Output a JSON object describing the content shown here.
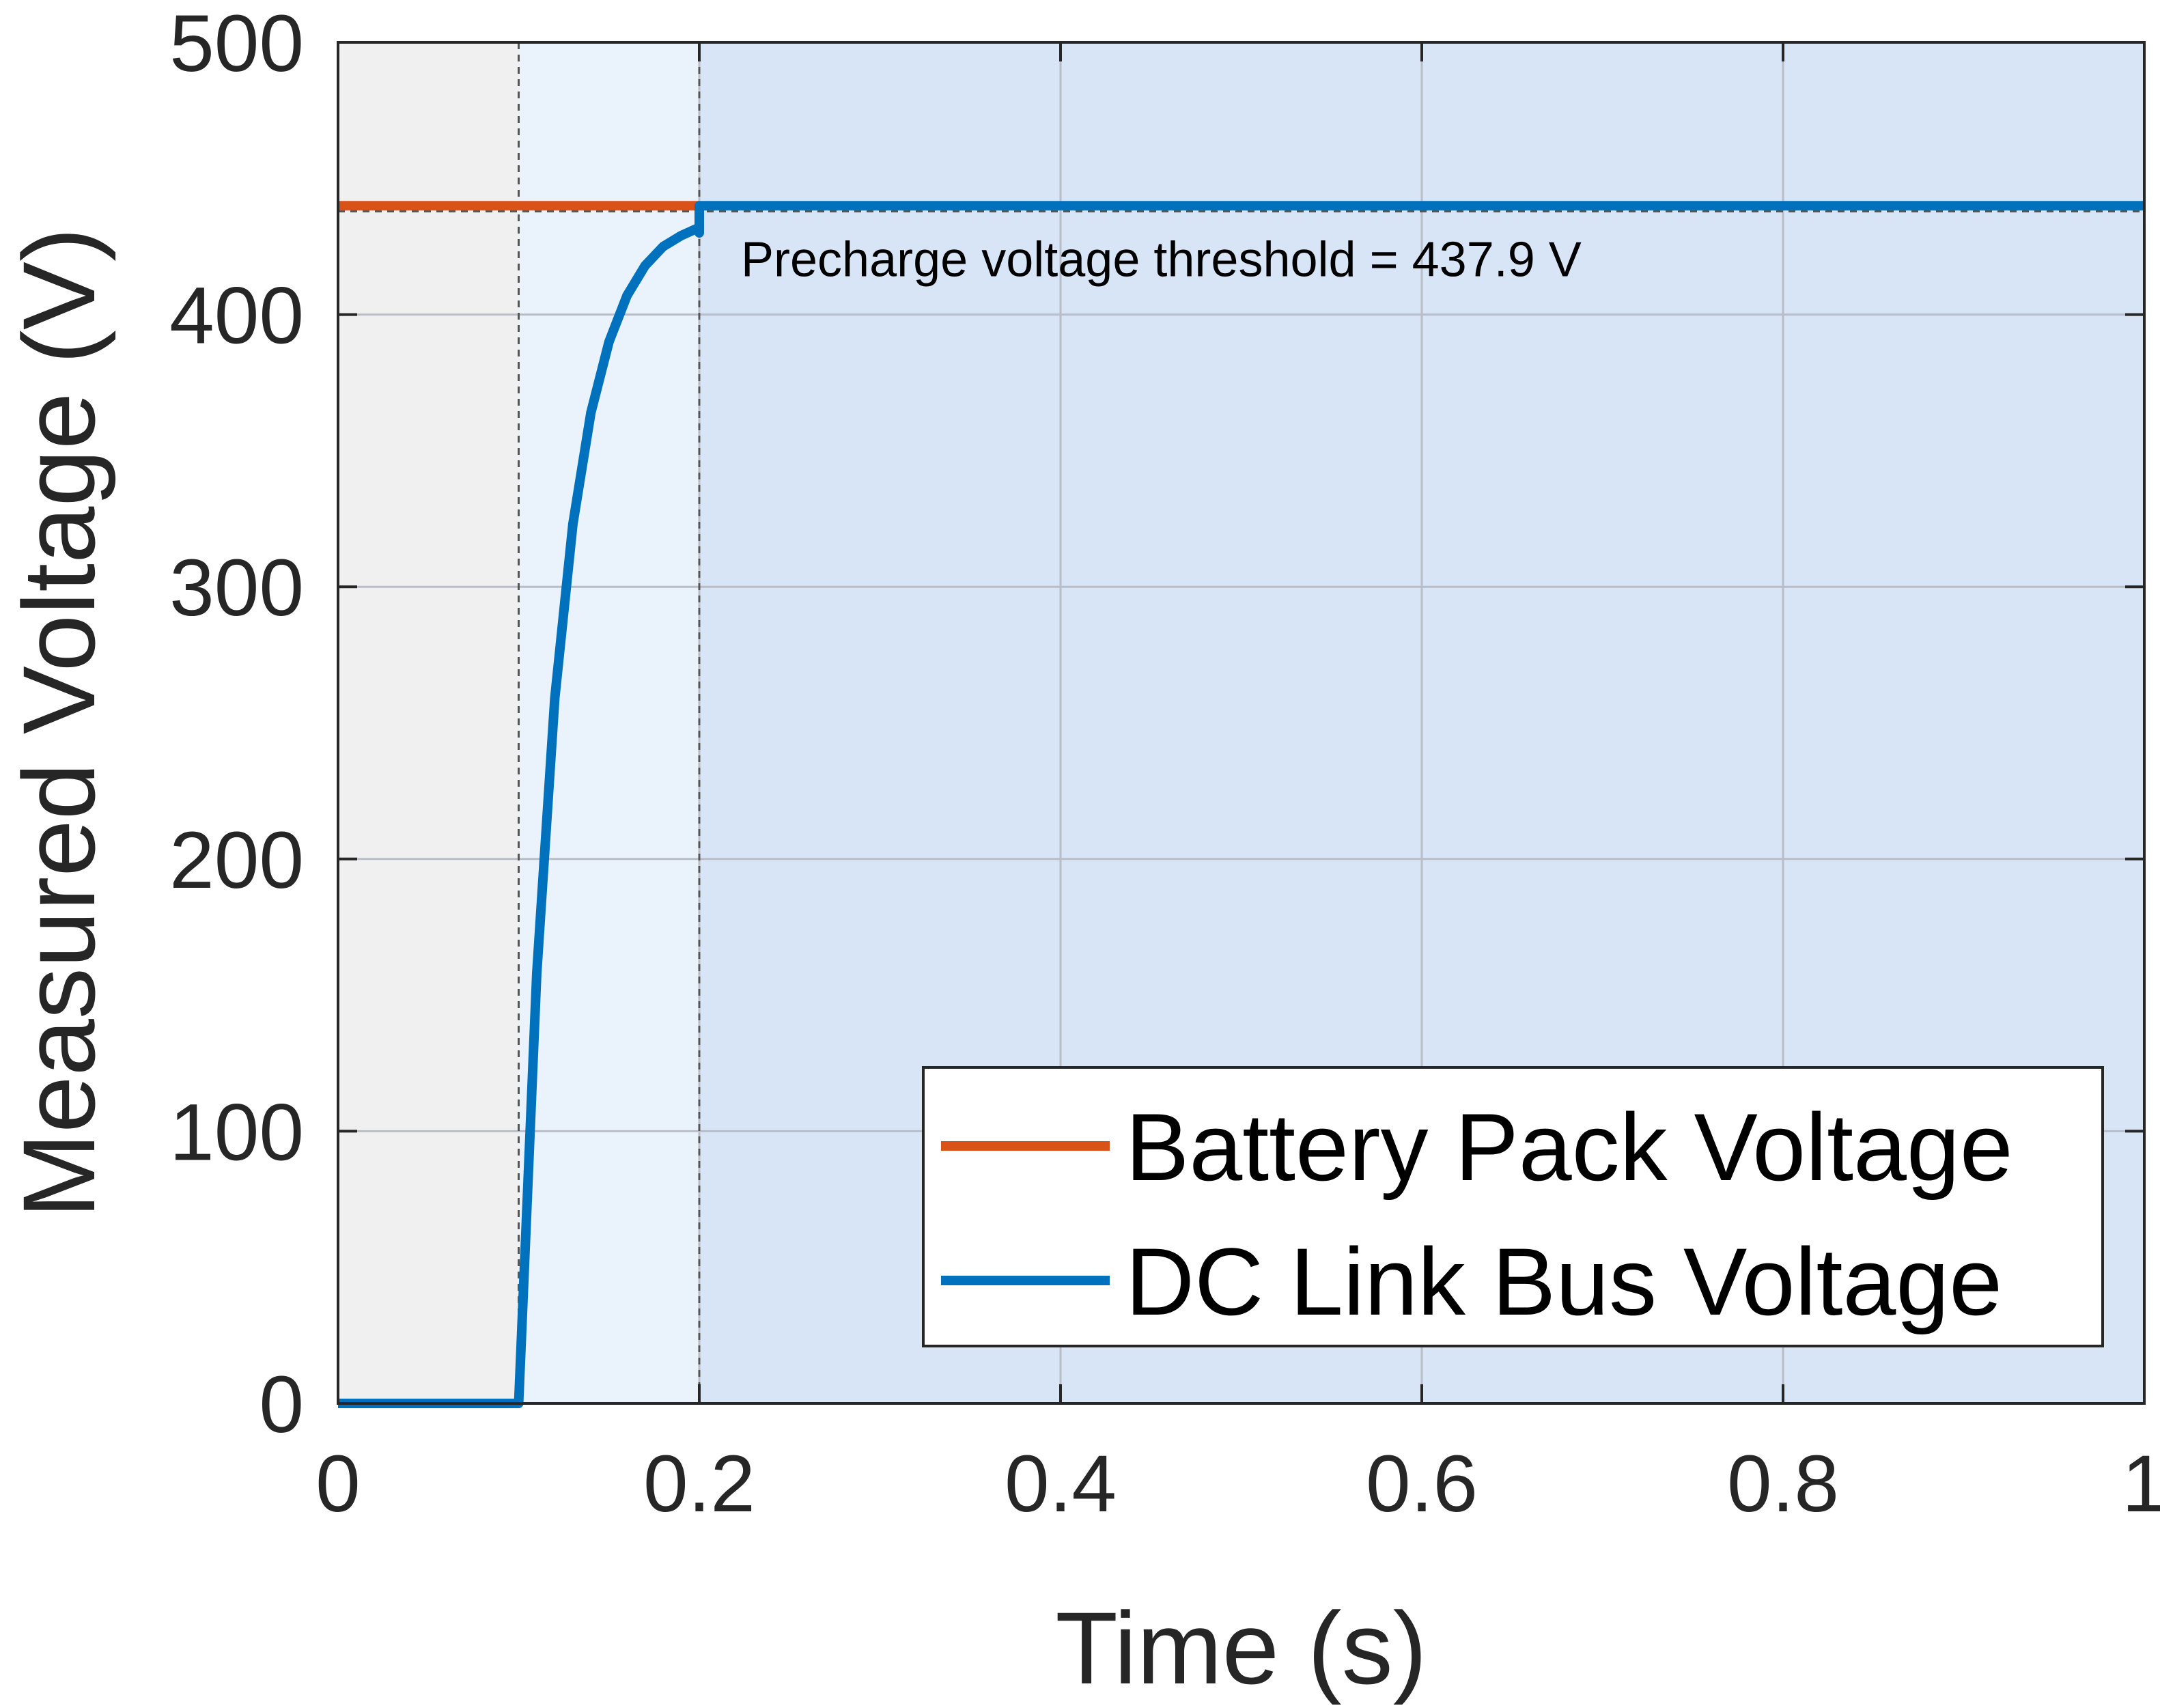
{
  "chart_data": {
    "type": "line",
    "xlabel": "Time (s)",
    "ylabel": "Measured Voltage (V)",
    "xlim": [
      0,
      1
    ],
    "ylim": [
      0,
      500
    ],
    "xticks": [
      0,
      0.2,
      0.4,
      0.6,
      0.8,
      1
    ],
    "xtick_labels": [
      "0",
      "0.2",
      "0.4",
      "0.6",
      "0.8",
      "1"
    ],
    "yticks": [
      0,
      100,
      200,
      300,
      400,
      500
    ],
    "ytick_labels": [
      "0",
      "100",
      "200",
      "300",
      "400",
      "500"
    ],
    "grid": true,
    "regions": [
      {
        "x": [
          0,
          0.1
        ],
        "color": "#f0f0f0"
      },
      {
        "x": [
          0.1,
          0.2
        ],
        "color": "#eaf2fc"
      },
      {
        "x": [
          0.2,
          1
        ],
        "color": "#d8e5f7"
      }
    ],
    "vlines": [
      0.1,
      0.2
    ],
    "threshold": {
      "y": 437.9,
      "label": "Precharge voltage threshold = 437.9 V"
    },
    "legend": {
      "location": "bottom-right"
    },
    "series": [
      {
        "name": "Battery Pack Voltage",
        "color": "#d95319",
        "x": [
          0,
          0.2
        ],
        "y": [
          440,
          440
        ]
      },
      {
        "name": "DC Link Bus Voltage",
        "color": "#0072bd",
        "x": [
          0,
          0.1,
          0.11,
          0.12,
          0.13,
          0.14,
          0.15,
          0.16,
          0.17,
          0.18,
          0.19,
          0.2,
          0.2,
          0.2,
          0.2,
          0.202,
          1
        ],
        "y": [
          0,
          0,
          158,
          259,
          323,
          364,
          390,
          407,
          418,
          425,
          429,
          432,
          430,
          437.9,
          440,
          440,
          440
        ]
      }
    ]
  }
}
